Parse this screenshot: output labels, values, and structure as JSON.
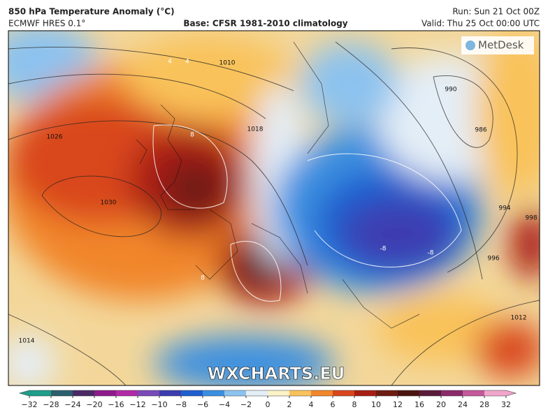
{
  "header": {
    "title": "850 hPa Temperature Anomaly (°C)",
    "model": "ECMWF HRES 0.1°",
    "base": "Base: CFSR 1981-2010 climatology",
    "run": "Run: Sun 21 Oct 00Z",
    "valid": "Valid: Thu 25 Oct 00:00 UTC"
  },
  "map": {
    "logo": "MetDesk",
    "watermark": "WXCHARTS.EU",
    "pressure_labels": [
      "1010",
      "990",
      "986",
      "1018",
      "1026",
      "1030",
      "994",
      "998",
      "996",
      "1014",
      "1012"
    ],
    "anomaly_labels": [
      "4",
      "4",
      "8",
      "8",
      "-8",
      "-8"
    ]
  },
  "colorbar": {
    "ticks": [
      {
        "value": -32,
        "label": "−32"
      },
      {
        "value": -28,
        "label": "−28"
      },
      {
        "value": -24,
        "label": "−24"
      },
      {
        "value": -20,
        "label": "−20"
      },
      {
        "value": -16,
        "label": "−16"
      },
      {
        "value": -12,
        "label": "−12"
      },
      {
        "value": -10,
        "label": "−10"
      },
      {
        "value": -8,
        "label": "−8"
      },
      {
        "value": -6,
        "label": "−6"
      },
      {
        "value": -4,
        "label": "−4"
      },
      {
        "value": -2,
        "label": "−2"
      },
      0,
      2,
      4,
      6,
      8,
      10,
      12,
      16,
      20,
      24,
      28,
      32
    ],
    "colors": [
      "#1f9e89",
      "#2b5f6e",
      "#4b2a66",
      "#8e1a8c",
      "#b02aa8",
      "#7a4ab8",
      "#3c3cb0",
      "#1e5fcf",
      "#3b8fe0",
      "#8cc2ef",
      "#e4eef7",
      "#fbf3c8",
      "#f9c25a",
      "#f1862a",
      "#d9461c",
      "#a81e12",
      "#6e1b12",
      "#4a1410",
      "#5a1a3a",
      "#8a2a6a",
      "#c4589a",
      "#f1a6cc"
    ]
  }
}
